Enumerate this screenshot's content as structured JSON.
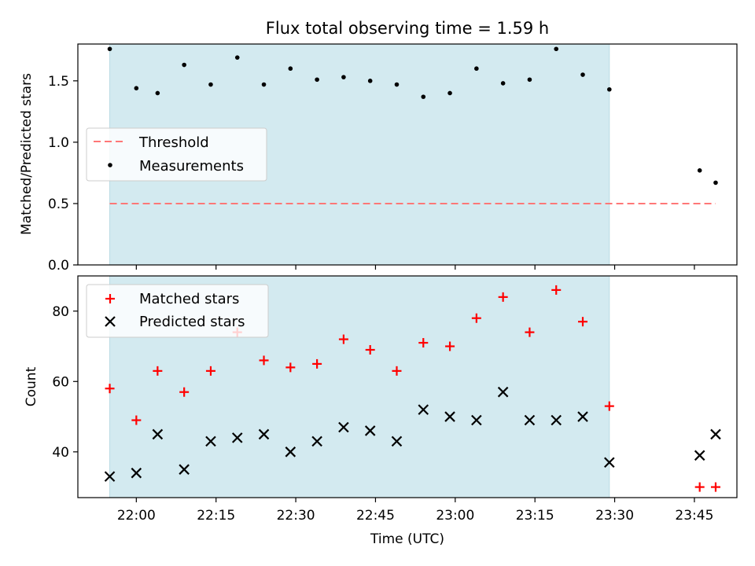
{
  "chart_data": [
    {
      "type": "scatter",
      "title": "Flux total observing time = 1.59 h",
      "xlabel": "",
      "ylabel": "Matched/Predicted stars",
      "ylim": [
        0.0,
        1.8
      ],
      "yticks": [
        0.0,
        0.5,
        1.0,
        1.5
      ],
      "grid": false,
      "legend": "upper-left",
      "shaded_interval": {
        "start": "21:55",
        "end": "23:29",
        "color": "#d3eaf0"
      },
      "threshold": {
        "name": "Threshold",
        "value": 0.5,
        "x_start": "21:55",
        "x_end": "23:49",
        "color": "#ff7777"
      },
      "series": [
        {
          "name": "Measurements",
          "color": "#000000",
          "marker": "dot",
          "x": [
            "21:55",
            "22:00",
            "22:04",
            "22:09",
            "22:14",
            "22:19",
            "22:24",
            "22:29",
            "22:34",
            "22:39",
            "22:44",
            "22:49",
            "22:54",
            "22:59",
            "23:04",
            "23:09",
            "23:14",
            "23:19",
            "23:24",
            "23:29",
            "23:46",
            "23:49"
          ],
          "y": [
            1.76,
            1.44,
            1.4,
            1.63,
            1.47,
            1.69,
            1.47,
            1.6,
            1.51,
            1.53,
            1.5,
            1.47,
            1.37,
            1.4,
            1.6,
            1.48,
            1.51,
            1.76,
            1.55,
            1.43,
            0.77,
            0.67
          ]
        }
      ]
    },
    {
      "type": "scatter",
      "title": "",
      "xlabel": "Time (UTC)",
      "ylabel": "Count",
      "ylim": [
        27,
        90
      ],
      "yticks": [
        40,
        60,
        80
      ],
      "xlim": [
        "21:49",
        "23:53"
      ],
      "xticks": [
        "22:00",
        "22:15",
        "22:30",
        "22:45",
        "23:00",
        "23:15",
        "23:30",
        "23:45"
      ],
      "grid": false,
      "legend": "upper-left",
      "shaded_interval": {
        "start": "21:55",
        "end": "23:29",
        "color": "#d3eaf0"
      },
      "series": [
        {
          "name": "Matched stars",
          "color": "#ff0000",
          "marker": "plus",
          "x": [
            "21:55",
            "22:00",
            "22:04",
            "22:09",
            "22:14",
            "22:19",
            "22:24",
            "22:29",
            "22:34",
            "22:39",
            "22:44",
            "22:49",
            "22:54",
            "22:59",
            "23:04",
            "23:09",
            "23:14",
            "23:19",
            "23:24",
            "23:29",
            "23:46",
            "23:49"
          ],
          "y": [
            58,
            49,
            63,
            57,
            63,
            74,
            66,
            64,
            65,
            72,
            69,
            63,
            71,
            70,
            78,
            84,
            74,
            86,
            77,
            53,
            30,
            30
          ]
        },
        {
          "name": "Predicted stars",
          "color": "#000000",
          "marker": "x",
          "x": [
            "21:55",
            "22:00",
            "22:04",
            "22:09",
            "22:14",
            "22:19",
            "22:24",
            "22:29",
            "22:34",
            "22:39",
            "22:44",
            "22:49",
            "22:54",
            "22:59",
            "23:04",
            "23:09",
            "23:14",
            "23:19",
            "23:24",
            "23:29",
            "23:46",
            "23:49"
          ],
          "y": [
            33,
            34,
            45,
            35,
            43,
            44,
            45,
            40,
            43,
            47,
            46,
            43,
            52,
            50,
            49,
            57,
            49,
            49,
            50,
            37,
            39,
            45
          ]
        }
      ]
    }
  ]
}
